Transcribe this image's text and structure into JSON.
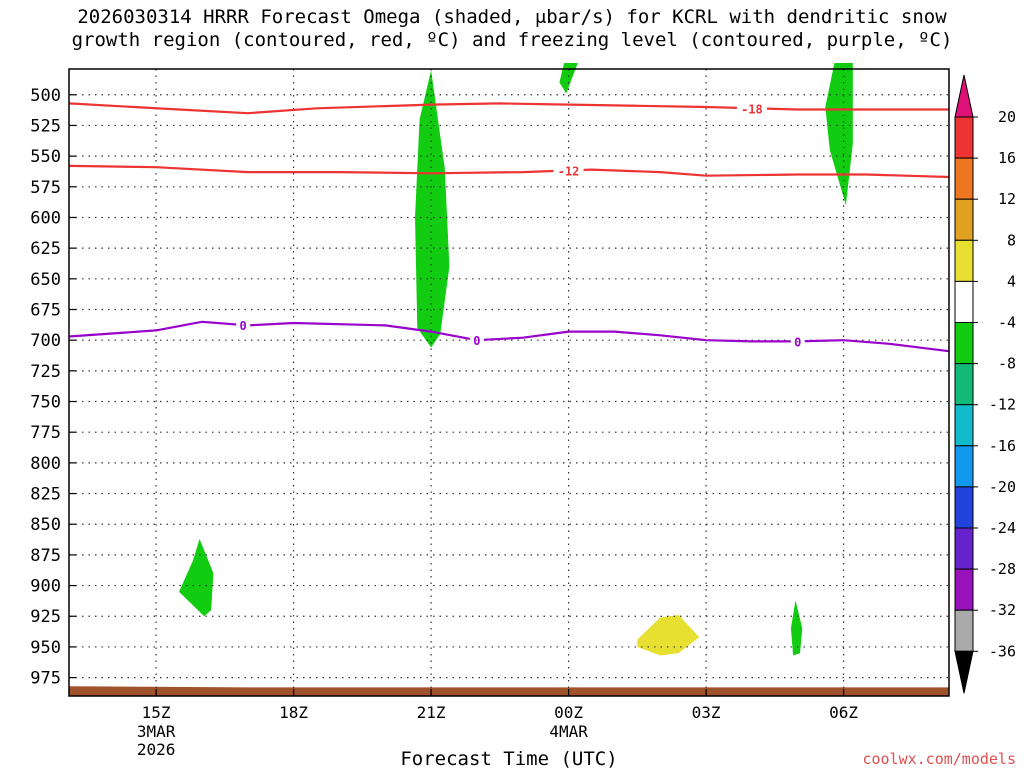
{
  "title": {
    "line1": "2026030314 HRRR Forecast Omega (shaded, μbar/s) for KCRL with dendritic snow",
    "line2": "growth region (contoured, red, ºC) and freezing level (contoured, purple, ºC)"
  },
  "credit": "coolwx.com/models",
  "chart_data": {
    "type": "time-height cross-section",
    "xlabel": "Forecast Time (UTC)",
    "xrange_hours": [
      13.1,
      32.3
    ],
    "xticks": [
      {
        "hour": 15,
        "label": "15Z",
        "sub": [
          "3MAR",
          "2026"
        ]
      },
      {
        "hour": 18,
        "label": "18Z",
        "sub": []
      },
      {
        "hour": 21,
        "label": "21Z",
        "sub": []
      },
      {
        "hour": 24,
        "label": "00Z",
        "sub": [
          "4MAR"
        ]
      },
      {
        "hour": 27,
        "label": "03Z",
        "sub": []
      },
      {
        "hour": 30,
        "label": "06Z",
        "sub": []
      }
    ],
    "ylabel": "",
    "ylim_hPa": [
      479,
      990
    ],
    "yticks": [
      500,
      525,
      550,
      575,
      600,
      625,
      650,
      675,
      700,
      725,
      750,
      775,
      800,
      825,
      850,
      875,
      900,
      925,
      950,
      975
    ],
    "grid": true,
    "surface_hPa": [
      [
        13.1,
        982
      ],
      [
        17.0,
        983
      ],
      [
        24.5,
        983
      ],
      [
        32.3,
        983
      ]
    ],
    "omega_regions": [
      {
        "color": "#11cc11",
        "class": "-8 to -4",
        "points": [
          [
            21.0,
            480
          ],
          [
            21.3,
            560
          ],
          [
            21.4,
            640
          ],
          [
            21.2,
            695
          ],
          [
            21.0,
            706
          ],
          [
            20.7,
            690
          ],
          [
            20.65,
            600
          ],
          [
            20.75,
            520
          ]
        ]
      },
      {
        "color": "#11cc11",
        "class": "-8 to -4",
        "points": [
          [
            24.2,
            474
          ],
          [
            23.9,
            474
          ],
          [
            23.8,
            490
          ],
          [
            23.95,
            499
          ]
        ]
      },
      {
        "color": "#11cc11",
        "class": "-8 to -4",
        "points": [
          [
            29.8,
            474
          ],
          [
            30.2,
            474
          ],
          [
            30.2,
            540
          ],
          [
            30.05,
            590
          ],
          [
            29.7,
            545
          ],
          [
            29.6,
            510
          ]
        ]
      },
      {
        "color": "#11cc11",
        "class": "-8 to -4",
        "points": [
          [
            15.95,
            862
          ],
          [
            16.25,
            890
          ],
          [
            16.2,
            920
          ],
          [
            16.05,
            925
          ],
          [
            15.5,
            905
          ],
          [
            15.8,
            880
          ]
        ]
      },
      {
        "color": "#11cc11",
        "class": "-8 to -4",
        "points": [
          [
            28.95,
            912
          ],
          [
            29.1,
            935
          ],
          [
            29.05,
            955
          ],
          [
            28.9,
            957
          ],
          [
            28.85,
            935
          ]
        ]
      },
      {
        "color": "#e8e030",
        "class": "4 to 8",
        "points": [
          [
            25.5,
            944
          ],
          [
            26.0,
            926
          ],
          [
            26.4,
            924
          ],
          [
            26.85,
            942
          ],
          [
            26.4,
            955
          ],
          [
            26.0,
            957
          ],
          [
            25.5,
            950
          ]
        ]
      }
    ],
    "contours": [
      {
        "name": "-18",
        "color": "#ee3333",
        "label_at_hour": 28.0,
        "points": [
          [
            13.1,
            507
          ],
          [
            15.5,
            512
          ],
          [
            17.0,
            515
          ],
          [
            18.5,
            511
          ],
          [
            21.0,
            508
          ],
          [
            22.5,
            507
          ],
          [
            24.0,
            508
          ],
          [
            25.5,
            509
          ],
          [
            27.0,
            510
          ],
          [
            29.0,
            512
          ],
          [
            30.5,
            512
          ],
          [
            32.3,
            512
          ]
        ]
      },
      {
        "name": "-12",
        "color": "#ee3333",
        "label_at_hour": 24.0,
        "points": [
          [
            13.1,
            558
          ],
          [
            15.0,
            559
          ],
          [
            17.0,
            563
          ],
          [
            19.0,
            563
          ],
          [
            21.0,
            564
          ],
          [
            23.0,
            563
          ],
          [
            24.5,
            561
          ],
          [
            26.0,
            563
          ],
          [
            27.0,
            566
          ],
          [
            29.0,
            565
          ],
          [
            30.5,
            565
          ],
          [
            32.3,
            567
          ]
        ]
      },
      {
        "name": "0",
        "color": "#9900cc",
        "label_at_hour": 16.9,
        "points": [
          [
            13.1,
            697
          ],
          [
            15.0,
            692
          ],
          [
            16.0,
            685
          ],
          [
            17.0,
            688
          ],
          [
            18.0,
            686
          ],
          [
            19.0,
            687
          ],
          [
            20.0,
            688
          ],
          [
            21.0,
            693
          ],
          [
            22.0,
            700
          ],
          [
            23.0,
            698
          ],
          [
            24.0,
            693
          ],
          [
            25.0,
            693
          ],
          [
            26.0,
            696
          ],
          [
            27.0,
            700
          ],
          [
            28.0,
            701
          ],
          [
            29.0,
            701
          ],
          [
            30.0,
            700
          ],
          [
            31.0,
            703
          ],
          [
            32.3,
            709
          ]
        ]
      },
      {
        "name": "0",
        "color": "#9900cc",
        "label_at_hour": 22.0,
        "points": []
      },
      {
        "name": "0",
        "color": "#9900cc",
        "label_at_hour": 29.0,
        "points": []
      }
    ],
    "colorbar": {
      "labels": [
        "20",
        "16",
        "12",
        "8",
        "4",
        "-4",
        "-8",
        "-12",
        "-16",
        "-20",
        "-24",
        "-28",
        "-32",
        "-36"
      ],
      "colors": [
        "#dd1177",
        "#ee3333",
        "#ee7722",
        "#e0a020",
        "#e8e030",
        "#ffffff",
        "#11cc11",
        "#11bb77",
        "#11bbcc",
        "#1199ee",
        "#2244dd",
        "#6622cc",
        "#9911bb",
        "#aaaaaa",
        "#000000"
      ]
    }
  }
}
